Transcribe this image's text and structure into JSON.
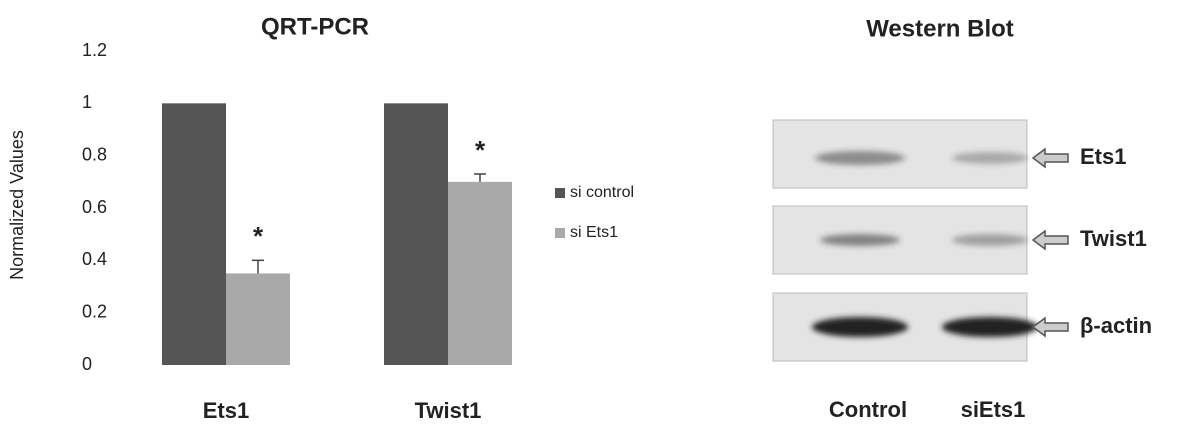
{
  "chart_data": {
    "type": "bar",
    "title": "QRT-PCR",
    "y_label": "Normalized Values",
    "categories": [
      "Ets1",
      "Twist1"
    ],
    "series": [
      {
        "name": "si control",
        "color": "#555555",
        "values": [
          1,
          1
        ]
      },
      {
        "name": "si Ets1",
        "color": "#a9a9a9",
        "values": [
          0.35,
          0.7
        ],
        "errors": [
          0.05,
          0.03
        ],
        "annotations": [
          "*",
          "*"
        ]
      }
    ],
    "ylim": [
      0,
      1.2
    ],
    "yticks": [
      0,
      0.2,
      0.4,
      0.6,
      0.8,
      1,
      1.2
    ],
    "legend": "right"
  },
  "western_blot": {
    "title": "Western Blot",
    "bands": [
      "Ets1",
      "Twist1",
      "β-actin"
    ],
    "lanes": [
      "Control",
      "siEts1"
    ]
  }
}
